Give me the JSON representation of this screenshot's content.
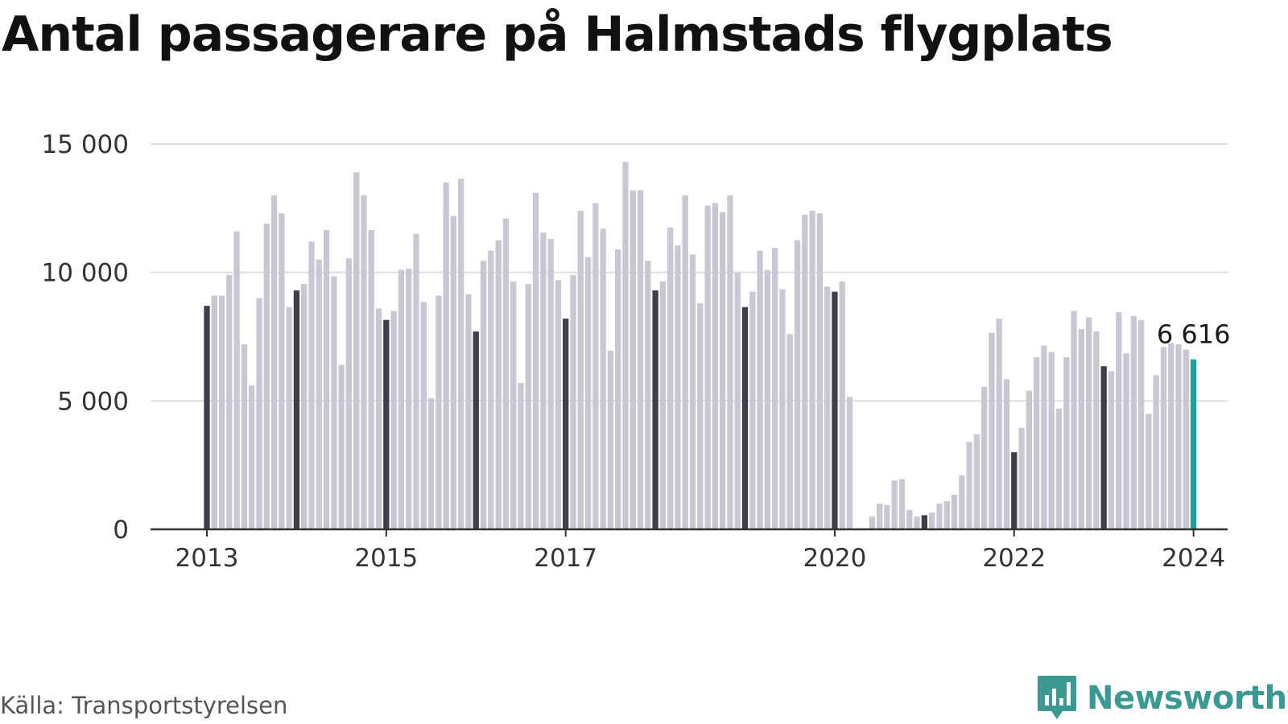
{
  "title": "Antal passagerare på Halmstads flygplats",
  "source": "Källa: Transportstyrelsen",
  "brand": {
    "name": "Newsworthy",
    "color": "#3a9a93",
    "icon": "chart-bubble-icon"
  },
  "colors": {
    "bar": "#c8c8d2",
    "january": "#3f3f4c",
    "latest": "#1aa399",
    "grid": "#dddddd",
    "axis": "#333333"
  },
  "chart_data": {
    "type": "bar",
    "title": "Antal passagerare på Halmstads flygplats",
    "xlabel": "",
    "ylabel": "",
    "ylim": [
      0,
      15000
    ],
    "yticks": [
      0,
      5000,
      10000,
      15000
    ],
    "ytick_labels": [
      "0",
      "5 000",
      "10 000",
      "15 000"
    ],
    "xticks": [
      {
        "year": 2013,
        "label": "2013"
      },
      {
        "year": 2015,
        "label": "2015"
      },
      {
        "year": 2017,
        "label": "2017"
      },
      {
        "year": 2020,
        "label": "2020"
      },
      {
        "year": 2022,
        "label": "2022"
      },
      {
        "year": 2024,
        "label": "2024"
      }
    ],
    "grid": true,
    "highlight": "January bars dark, latest month teal",
    "series": [
      {
        "year": 2013,
        "values": [
          8700,
          9100,
          9100,
          9900,
          11600,
          7200,
          5600,
          9000,
          11900,
          13000,
          12300,
          8650
        ]
      },
      {
        "year": 2014,
        "values": [
          9300,
          9550,
          11200,
          10500,
          11650,
          9850,
          6400,
          10550,
          13900,
          13000,
          11650,
          8600
        ]
      },
      {
        "year": 2015,
        "values": [
          8150,
          8500,
          10100,
          10150,
          11500,
          8850,
          5100,
          9100,
          13500,
          12200,
          13650,
          9150
        ]
      },
      {
        "year": 2016,
        "values": [
          7700,
          10450,
          10850,
          11250,
          12100,
          9650,
          5700,
          9550,
          13100,
          11550,
          11300,
          9700
        ]
      },
      {
        "year": 2017,
        "values": [
          8200,
          9900,
          12400,
          10600,
          12700,
          11700,
          6950,
          10900,
          14300,
          13200,
          13200,
          10450
        ]
      },
      {
        "year": 2018,
        "values": [
          9300,
          9650,
          11750,
          11050,
          13000,
          10700,
          8800,
          12600,
          12700,
          12350,
          13000,
          10000
        ]
      },
      {
        "year": 2019,
        "values": [
          8650,
          9250,
          10850,
          10100,
          10950,
          9350,
          7600,
          11250,
          12250,
          12400,
          12300,
          9450
        ]
      },
      {
        "year": 2020,
        "values": [
          9250,
          9650,
          5150,
          0,
          0,
          500,
          1000,
          950,
          1900,
          1950,
          750,
          500
        ]
      },
      {
        "year": 2021,
        "values": [
          550,
          650,
          1000,
          1100,
          1350,
          2100,
          3400,
          3700,
          5550,
          7650,
          8200,
          5850
        ]
      },
      {
        "year": 2022,
        "values": [
          3000,
          3950,
          5400,
          6700,
          7150,
          6900,
          4700,
          6700,
          8500,
          7800,
          8250,
          7700
        ]
      },
      {
        "year": 2023,
        "values": [
          6350,
          6150,
          8450,
          6850,
          8300,
          8150,
          4500,
          6000,
          7100,
          7250,
          7200,
          7000
        ]
      },
      {
        "year": 2024,
        "values": [
          6616
        ]
      }
    ],
    "annotations": [
      {
        "year": 2024,
        "month": 1,
        "value": 6616,
        "label": "6 616"
      }
    ]
  }
}
